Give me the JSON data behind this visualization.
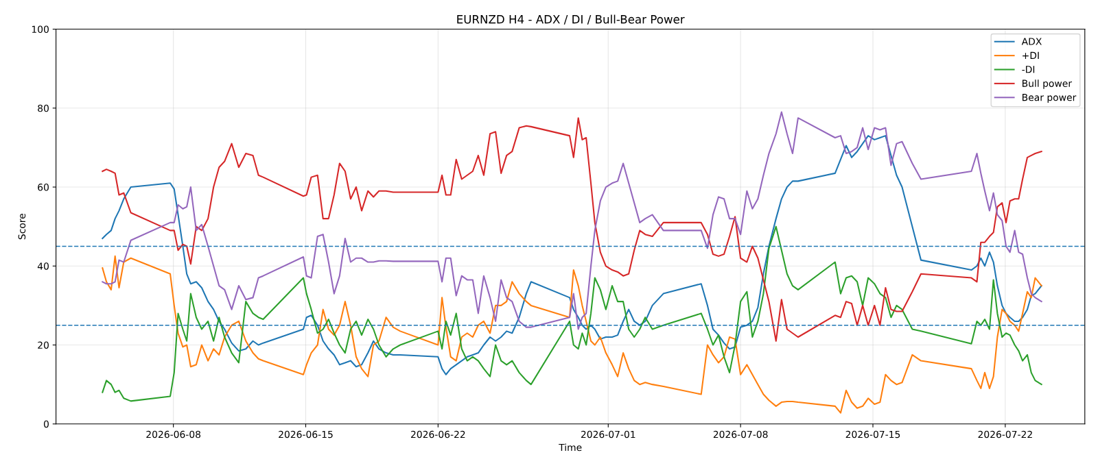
{
  "chart_data": {
    "type": "line",
    "title": "EURNZD H4 - ADX / DI / Bull-Bear Power",
    "xlabel": "Time",
    "ylabel": "Score",
    "x": [
      "2026-06-04T06:00",
      "2026-06-04T11:00",
      "2026-06-04T17:00",
      "2026-06-04T22:00",
      "2026-06-05T03:00",
      "2026-06-05T09:00",
      "2026-06-05T18:00",
      "2026-06-07T20:00",
      "2026-06-08T01:00",
      "2026-06-08T06:00",
      "2026-06-08T12:00",
      "2026-06-08T17:00",
      "2026-06-08T22:00",
      "2026-06-09T05:00",
      "2026-06-09T12:00",
      "2026-06-09T20:00",
      "2026-06-10T03:00",
      "2026-06-10T10:00",
      "2026-06-10T17:00",
      "2026-06-11T02:00",
      "2026-06-11T11:00",
      "2026-06-11T20:00",
      "2026-06-12T05:00",
      "2026-06-12T12:00",
      "2026-06-12T18:00",
      "2026-06-14T21:00",
      "2026-06-15T01:00",
      "2026-06-15T07:00",
      "2026-06-15T15:00",
      "2026-06-15T22:00",
      "2026-06-16T05:00",
      "2026-06-16T12:00",
      "2026-06-16T19:00",
      "2026-06-17T02:00",
      "2026-06-17T09:00",
      "2026-06-17T16:00",
      "2026-06-17T23:00",
      "2026-06-18T07:00",
      "2026-06-18T14:00",
      "2026-06-18T21:00",
      "2026-06-19T06:00",
      "2026-06-19T15:00",
      "2026-06-20T00:00",
      "2026-06-22T00:00",
      "2026-06-22T05:00",
      "2026-06-22T10:00",
      "2026-06-22T16:00",
      "2026-06-22T23:00",
      "2026-06-23T06:00",
      "2026-06-23T13:00",
      "2026-06-23T20:00",
      "2026-06-24T03:00",
      "2026-06-24T10:00",
      "2026-06-24T18:00",
      "2026-06-25T01:00",
      "2026-06-25T08:00",
      "2026-06-25T15:00",
      "2026-06-25T22:00",
      "2026-06-26T07:00",
      "2026-06-26T16:00",
      "2026-06-26T22:00",
      "2026-06-28T23:00",
      "2026-06-29T04:00",
      "2026-06-29T10:00",
      "2026-06-29T15:00",
      "2026-06-29T20:00",
      "2026-06-30T02:00",
      "2026-06-30T07:00",
      "2026-06-30T14:00",
      "2026-06-30T21:00",
      "2026-07-01T05:00",
      "2026-07-01T12:00",
      "2026-07-01T19:00",
      "2026-07-02T02:00",
      "2026-07-02T09:00",
      "2026-07-02T16:00",
      "2026-07-02T23:00",
      "2026-07-03T08:00",
      "2026-07-03T22:00",
      "2026-07-05T22:00",
      "2026-07-06T06:00",
      "2026-07-06T13:00",
      "2026-07-06T20:00",
      "2026-07-07T03:00",
      "2026-07-07T10:00",
      "2026-07-07T17:00",
      "2026-07-08T00:00",
      "2026-07-08T08:00",
      "2026-07-08T15:00",
      "2026-07-08T22:00",
      "2026-07-09T05:00",
      "2026-07-09T12:00",
      "2026-07-09T21:00",
      "2026-07-10T04:00",
      "2026-07-10T11:00",
      "2026-07-10T18:00",
      "2026-07-11T01:00",
      "2026-07-13T00:00",
      "2026-07-13T07:00",
      "2026-07-13T14:00",
      "2026-07-13T21:00",
      "2026-07-14T04:00",
      "2026-07-14T11:00",
      "2026-07-14T18:00",
      "2026-07-15T02:00",
      "2026-07-15T09:00",
      "2026-07-15T16:00",
      "2026-07-15T23:00",
      "2026-07-16T06:00",
      "2026-07-16T13:00",
      "2026-07-17T02:00",
      "2026-07-17T13:00",
      "2026-07-20T05:00",
      "2026-07-20T12:00",
      "2026-07-20T17:00",
      "2026-07-20T22:00",
      "2026-07-21T04:00",
      "2026-07-21T09:00",
      "2026-07-21T14:00",
      "2026-07-21T20:00",
      "2026-07-22T01:00",
      "2026-07-22T06:00",
      "2026-07-22T12:00",
      "2026-07-22T17:00",
      "2026-07-22T22:00",
      "2026-07-23T04:00",
      "2026-07-23T09:00",
      "2026-07-23T14:00",
      "2026-07-23T22:00"
    ],
    "series": [
      {
        "name": "ADX",
        "color": "#1f77b4",
        "values": [
          47,
          48,
          49,
          52,
          54,
          57,
          60,
          61,
          59.5,
          53,
          45,
          38,
          35.5,
          36,
          34.5,
          31,
          29,
          26,
          24,
          20.5,
          18.5,
          19,
          21,
          20,
          20.5,
          24,
          27,
          27.5,
          25,
          21,
          19,
          17.5,
          15,
          15.5,
          16,
          14.5,
          15,
          18,
          21,
          19,
          18,
          17.5,
          17.5,
          17,
          14,
          12.5,
          14,
          15,
          16,
          17,
          17.5,
          18,
          20,
          22,
          21,
          22,
          23.5,
          23,
          27,
          33,
          36,
          32,
          29,
          27,
          25,
          24,
          25,
          24,
          21.5,
          22,
          22,
          22.5,
          26,
          29,
          26,
          25,
          26,
          30,
          33,
          35.5,
          30,
          24,
          22.5,
          20.5,
          19,
          19.5,
          24.5,
          25,
          26,
          29.5,
          38,
          45,
          52,
          57,
          60,
          61.5,
          61.5,
          63.5,
          67,
          70.5,
          67.5,
          69,
          71,
          73,
          72,
          72.5,
          73,
          68,
          63,
          60,
          50,
          41.5,
          39,
          40,
          42,
          40,
          43.5,
          41,
          35,
          30,
          28,
          27,
          26,
          26,
          27,
          29,
          32.5,
          33,
          35
        ]
      },
      {
        "name": "+DI",
        "color": "#ff7f0e",
        "values": [
          39.5,
          36,
          34,
          42.5,
          34.5,
          41,
          42,
          38,
          30,
          23,
          19.5,
          20,
          14.5,
          15,
          20,
          16,
          19,
          17.5,
          22,
          25,
          26,
          21,
          18,
          16.5,
          16,
          12.5,
          15,
          18,
          20,
          29,
          24,
          22.5,
          25,
          31,
          25,
          17,
          14,
          12,
          20,
          21,
          27,
          24.5,
          23.5,
          20,
          32,
          24.5,
          17,
          16,
          22,
          23,
          22,
          25,
          26,
          23,
          30,
          30,
          31,
          36,
          33,
          31,
          30,
          27,
          39,
          35,
          30,
          26,
          21,
          20,
          22,
          18,
          15,
          12,
          18,
          14,
          11,
          10,
          10.5,
          10,
          9.5,
          7.5,
          20,
          17.5,
          15.5,
          17,
          22,
          21.5,
          12.5,
          15,
          12.5,
          10,
          7.5,
          6,
          4.5,
          5.5,
          5.7,
          5.7,
          5.5,
          4.5,
          2.8,
          8.5,
          5.5,
          4,
          4.5,
          6.5,
          5,
          5.5,
          12.5,
          11,
          10,
          10.5,
          17.5,
          16,
          14,
          11,
          9,
          13,
          9,
          12,
          22,
          29,
          28,
          26,
          25,
          23.5,
          28,
          33.5,
          32,
          37,
          35
        ]
      },
      {
        "name": "-DI",
        "color": "#2ca02c",
        "values": [
          8,
          11,
          10,
          8,
          8.5,
          6.5,
          5.8,
          7,
          13,
          28,
          24,
          21,
          33,
          27,
          24,
          26,
          21,
          27,
          22,
          18,
          15.5,
          31,
          28,
          27,
          26.5,
          37,
          33,
          29,
          23,
          24,
          26.5,
          23,
          20,
          18,
          24,
          26,
          22.5,
          26.5,
          24,
          20,
          17,
          19,
          20,
          23.5,
          19,
          26,
          22.5,
          28,
          19,
          16,
          17,
          16,
          14,
          12,
          20,
          16,
          15,
          16,
          13,
          11,
          10,
          26,
          20,
          19,
          23,
          20,
          28,
          37,
          34,
          29,
          35,
          31,
          31,
          24,
          22,
          24,
          27,
          24,
          25,
          28,
          24,
          20,
          22.5,
          17,
          13,
          20,
          31,
          33.5,
          22,
          26,
          33,
          44.5,
          50,
          44,
          38,
          35,
          34,
          41,
          33,
          37,
          37.5,
          36,
          30,
          37,
          35.5,
          33,
          32,
          27,
          30,
          29,
          24,
          23.5,
          20.3,
          26,
          25,
          26.5,
          24,
          36.5,
          28,
          22,
          23,
          22.5,
          20,
          18.5,
          16,
          17.5,
          13,
          11,
          10
        ]
      },
      {
        "name": "Bull power",
        "color": "#d62728",
        "values": [
          64,
          64.5,
          64,
          63.5,
          58,
          58.5,
          53.5,
          49,
          49,
          44,
          45.5,
          45,
          40.5,
          50,
          49,
          52,
          60,
          65,
          66.5,
          71,
          65,
          68.5,
          68,
          63,
          62.5,
          57.7,
          58,
          62.5,
          63,
          52,
          52,
          58,
          66,
          64,
          57,
          60,
          54,
          59,
          57.5,
          59,
          59,
          58.7,
          58.7,
          58.7,
          63,
          58,
          58,
          67,
          62,
          63,
          64,
          68,
          63,
          73.5,
          74,
          63.5,
          68,
          69,
          75,
          75.5,
          75.3,
          73,
          67.5,
          77.5,
          72,
          72.5,
          61,
          51,
          43.5,
          40,
          39,
          38.5,
          37.5,
          38,
          44,
          49,
          48,
          47.5,
          51,
          51,
          48,
          43,
          42.5,
          43,
          47.5,
          52.5,
          42,
          41,
          45,
          42,
          36.5,
          31,
          21,
          31.5,
          24,
          23,
          22,
          27.5,
          27,
          31,
          30.5,
          25,
          30,
          25,
          30,
          25,
          34.5,
          29,
          28.5,
          28.5,
          33.5,
          38,
          37,
          36,
          46,
          46,
          47.5,
          48.5,
          55,
          56,
          51,
          56.5,
          57,
          57,
          62,
          67.5,
          68,
          68.5,
          69
        ]
      },
      {
        "name": "Bear power",
        "color": "#9467bd",
        "values": [
          36,
          35.5,
          35.5,
          36,
          41.5,
          41,
          46.5,
          51,
          51,
          55.5,
          54.5,
          55,
          60,
          49,
          50.5,
          45,
          40,
          35,
          34,
          29,
          35,
          31.5,
          32,
          37,
          37.5,
          42.3,
          37.5,
          37,
          47.5,
          48,
          41,
          33,
          37.5,
          47,
          41,
          42,
          42,
          41,
          41,
          41.3,
          41.3,
          41.2,
          41.2,
          41.2,
          36,
          42,
          42,
          32.5,
          37.5,
          36.5,
          36.5,
          28,
          37.5,
          32,
          26,
          36.5,
          32,
          31,
          26,
          24.5,
          24.5,
          27,
          33,
          24,
          27,
          28,
          40,
          49,
          56.5,
          60,
          61,
          61.5,
          66,
          61,
          56,
          51,
          52,
          53,
          49,
          49,
          44.5,
          53,
          57.5,
          57,
          52,
          52,
          48,
          59,
          54.5,
          57,
          63,
          68.5,
          73.5,
          79,
          73.5,
          68.5,
          77.5,
          72.5,
          73,
          68.5,
          69,
          70,
          75,
          69.5,
          75,
          74.5,
          75,
          65.5,
          71,
          71.5,
          66,
          62,
          64,
          68.5,
          63.5,
          59,
          54,
          58.5,
          53,
          51.5,
          45,
          43.5,
          49,
          43.5,
          43,
          37,
          33,
          32,
          31
        ]
      }
    ],
    "xlim": [
      "2026-06-01T19:00",
      "2026-07-26T05:00"
    ],
    "xticks": [
      "2026-06-08",
      "2026-06-15",
      "2026-06-22",
      "2026-07-01",
      "2026-07-08",
      "2026-07-15",
      "2026-07-22"
    ],
    "ylim": [
      0,
      100
    ],
    "yticks": [
      0,
      20,
      40,
      60,
      80,
      100
    ],
    "ref_lines": [
      {
        "axis": "y",
        "value": 45,
        "color": "#1f77b4",
        "line_style": "dashed"
      },
      {
        "axis": "y",
        "value": 25,
        "color": "#1f77b4",
        "line_style": "dashed"
      }
    ],
    "grid": true,
    "legend": "top right",
    "line_style": "solid",
    "marker": "none"
  }
}
